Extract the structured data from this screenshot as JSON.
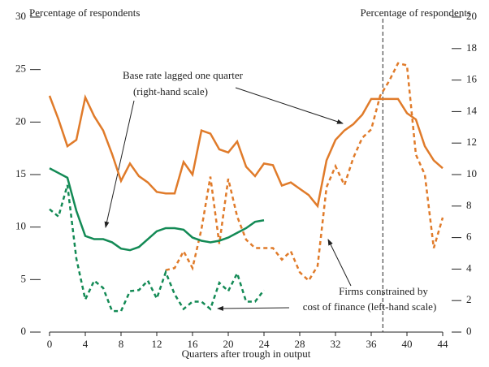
{
  "chart_data": {
    "type": "line",
    "y_label": "Percentage of respondents",
    "y2_label": "Percentage of respondents",
    "x_label": "Quarters after trough in output",
    "annotations": [
      "Base rate lagged one quarter",
      "(right-hand scale)",
      "Firms constrained by",
      "cost of finance (left-hand scale)"
    ],
    "vline": 37.3,
    "x": [
      0,
      1,
      2,
      3,
      4,
      5,
      6,
      7,
      8,
      9,
      10,
      11,
      12,
      13,
      14,
      15,
      16,
      17,
      18,
      19,
      20,
      21,
      22,
      23,
      24,
      25,
      26,
      27,
      28,
      29,
      30,
      31,
      32,
      33,
      34,
      35,
      36,
      37,
      38,
      39,
      40,
      41,
      42,
      43,
      44
    ],
    "xlim": [
      0,
      44
    ],
    "xticks": [
      0,
      4,
      8,
      12,
      16,
      20,
      24,
      28,
      32,
      36,
      40,
      44
    ],
    "ylim": [
      0,
      30
    ],
    "yticks": [
      0,
      5,
      10,
      15,
      20,
      25,
      30
    ],
    "y2lim": [
      0,
      20
    ],
    "y2ticks": [
      0,
      2,
      4,
      6,
      8,
      10,
      12,
      14,
      16,
      18,
      20
    ],
    "series": [
      {
        "color": "#e07b2a",
        "dash": false,
        "axis": "y2",
        "values": [
          15.0,
          13.5,
          11.8,
          12.2,
          14.9,
          13.7,
          12.8,
          11.3,
          9.6,
          10.7,
          9.9,
          9.5,
          8.9,
          8.8,
          8.8,
          10.8,
          10.0,
          12.8,
          12.6,
          11.6,
          11.4,
          12.1,
          10.5,
          9.9,
          10.7,
          10.6,
          9.3,
          9.5,
          9.1,
          8.7,
          8.0,
          10.9,
          12.2,
          12.8,
          13.2,
          13.8,
          14.8,
          14.8,
          14.8,
          14.8,
          13.9,
          13.5,
          11.8,
          10.9,
          10.4
        ]
      },
      {
        "color": "#e07b2a",
        "dash": true,
        "axis": "y",
        "values": [
          null,
          null,
          null,
          null,
          null,
          null,
          null,
          null,
          null,
          null,
          null,
          null,
          null,
          5.9,
          6.1,
          7.7,
          6.1,
          9.8,
          14.8,
          8.4,
          14.6,
          11.0,
          8.8,
          8.0,
          8.0,
          8.0,
          6.9,
          7.7,
          5.7,
          4.9,
          6.3,
          13.8,
          15.8,
          14.0,
          16.6,
          18.5,
          19.3,
          22.5,
          23.9,
          25.6,
          25.4,
          16.9,
          15.0,
          8.0,
          10.9
        ]
      },
      {
        "color": "#138a55",
        "dash": false,
        "axis": "y2",
        "values": [
          10.4,
          10.1,
          9.8,
          7.7,
          6.1,
          5.9,
          5.9,
          5.7,
          5.3,
          5.2,
          5.4,
          5.9,
          6.4,
          6.6,
          6.6,
          6.5,
          6.0,
          5.8,
          5.7,
          5.8,
          6.0,
          6.3,
          6.6,
          7.0,
          7.1,
          null,
          null,
          null,
          null,
          null,
          null,
          null,
          null,
          null,
          null,
          null,
          null,
          null,
          null,
          null,
          null,
          null,
          null,
          null,
          null
        ]
      },
      {
        "color": "#138a55",
        "dash": true,
        "axis": "y",
        "values": [
          11.7,
          11.0,
          14.0,
          7.0,
          3.1,
          4.9,
          4.2,
          2.0,
          2.0,
          3.9,
          4.0,
          4.9,
          3.2,
          5.7,
          3.6,
          2.2,
          2.9,
          2.9,
          2.2,
          4.7,
          3.9,
          5.6,
          2.9,
          2.9,
          4.0,
          null,
          null,
          null,
          null,
          null,
          null,
          null,
          null,
          null,
          null,
          null,
          null,
          null,
          null,
          null,
          null,
          null,
          null,
          null,
          null
        ]
      }
    ]
  }
}
